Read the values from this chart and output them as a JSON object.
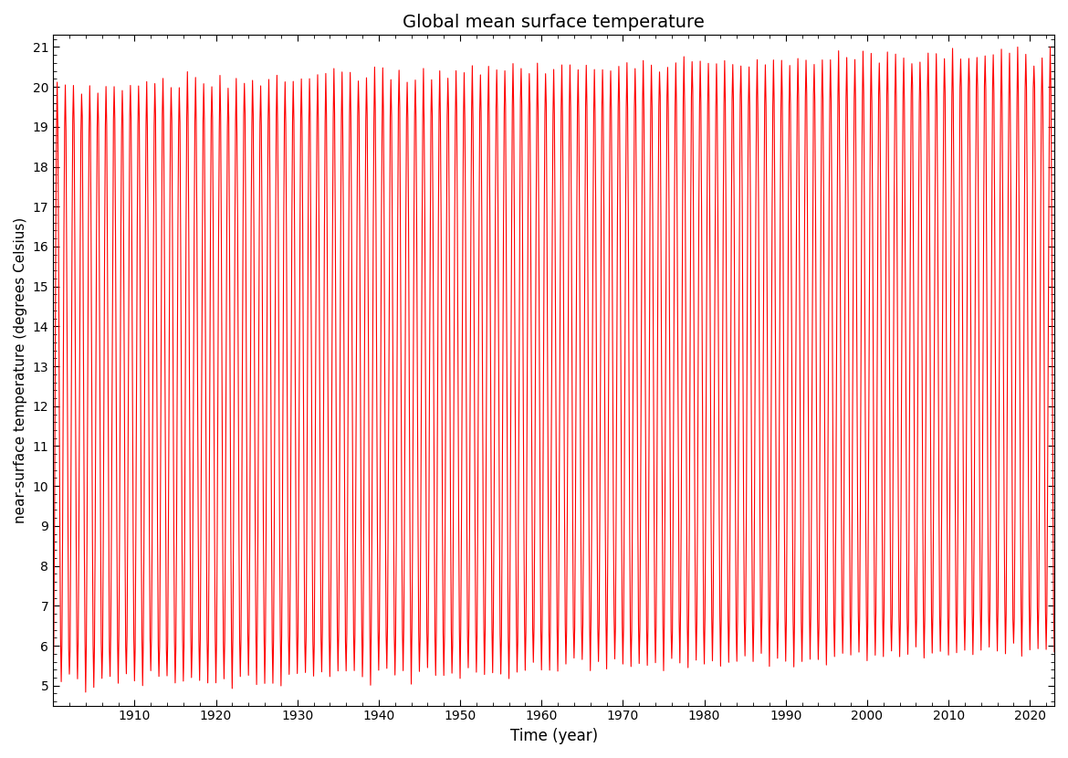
{
  "title": "Global mean surface temperature",
  "xlabel": "Time (year)",
  "ylabel": "near-surface temperature (degrees Celsius)",
  "line_color": "red",
  "line_width": 0.8,
  "start_year": 1900,
  "end_year": 2023,
  "months_per_year": 12,
  "baseline_mean": 12.5,
  "seasonal_amplitude": 7.5,
  "warming_total": 0.9,
  "xlim": [
    1900,
    2023
  ],
  "ylim": [
    4.5,
    21.3
  ],
  "yticks": [
    5,
    6,
    7,
    8,
    9,
    10,
    11,
    12,
    13,
    14,
    15,
    16,
    17,
    18,
    19,
    20,
    21
  ],
  "xticks": [
    1910,
    1920,
    1930,
    1940,
    1950,
    1960,
    1970,
    1980,
    1990,
    2000,
    2010,
    2020
  ],
  "figsize": [
    11.7,
    8.3
  ],
  "dpi": 100
}
